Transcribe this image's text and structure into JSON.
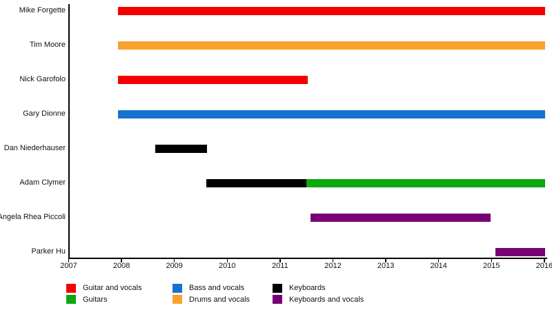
{
  "chart_data": {
    "type": "bar",
    "subtype": "gantt-timeline",
    "title": "",
    "xlabel": "",
    "ylabel": "",
    "grid": false,
    "x_axis": {
      "min": 2007,
      "max": 2016.03,
      "ticks": [
        2007,
        2008,
        2009,
        2010,
        2011,
        2012,
        2013,
        2014,
        2015,
        2016
      ]
    },
    "rows": [
      {
        "name": "Mike Forgette",
        "segments": [
          {
            "role": "Guitar and vocals",
            "start": 2007.93,
            "end": 2016.02
          }
        ]
      },
      {
        "name": "Tim Moore",
        "segments": [
          {
            "role": "Drums and vocals",
            "start": 2007.93,
            "end": 2016.02
          }
        ]
      },
      {
        "name": "Nick Garofolo",
        "segments": [
          {
            "role": "Guitar and vocals",
            "start": 2007.93,
            "end": 2011.53
          }
        ]
      },
      {
        "name": "Gary Dionne",
        "segments": [
          {
            "role": "Bass and vocals",
            "start": 2007.93,
            "end": 2016.02
          }
        ]
      },
      {
        "name": "Dan Niederhauser",
        "segments": [
          {
            "role": "Keyboards",
            "start": 2008.64,
            "end": 2009.62
          }
        ]
      },
      {
        "name": "Adam Clymer",
        "segments": [
          {
            "role": "Keyboards",
            "start": 2009.61,
            "end": 2011.5
          },
          {
            "role": "Guitars",
            "start": 2011.5,
            "end": 2016.02
          }
        ]
      },
      {
        "name": "Angela Rhea Piccoli",
        "segments": [
          {
            "role": "Keyboards and vocals",
            "start": 2011.58,
            "end": 2014.98
          }
        ]
      },
      {
        "name": "Parker Hu",
        "segments": [
          {
            "role": "Keyboards and vocals",
            "start": 2015.08,
            "end": 2016.02
          }
        ]
      }
    ],
    "colors": {
      "Guitar and vocals": "#F40000",
      "Guitars": "#0CA80C",
      "Bass and vocals": "#1572CE",
      "Drums and vocals": "#F9A12F",
      "Keyboards": "#000000",
      "Keyboards and vocals": "#770077"
    },
    "legend": {
      "position": "bottom",
      "columns": [
        [
          {
            "label": "Guitar and vocals"
          },
          {
            "label": "Guitars"
          }
        ],
        [
          {
            "label": "Bass and vocals"
          },
          {
            "label": "Drums and vocals"
          }
        ],
        [
          {
            "label": "Keyboards"
          },
          {
            "label": "Keyboards and vocals"
          }
        ]
      ]
    }
  }
}
